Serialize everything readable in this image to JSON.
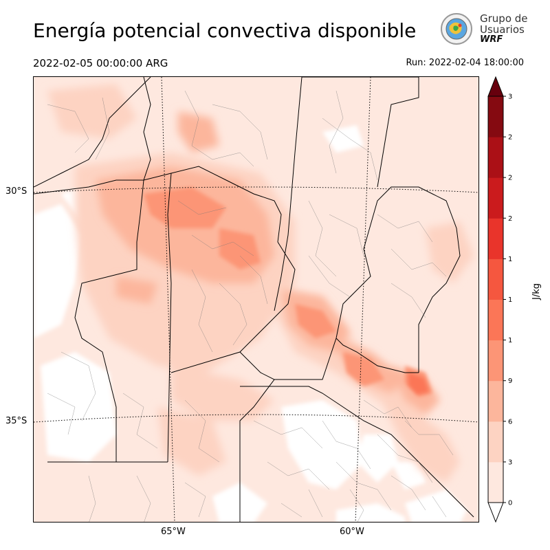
{
  "header": {
    "title": "Energía potencial convectiva disponible",
    "valid_time": "2022-02-05 00:00:00 ARG",
    "run_time": "Run: 2022-02-04 18:00:00"
  },
  "logo": {
    "line1": "Grupo de",
    "line2": "Usuarios",
    "line3": "WRF"
  },
  "map": {
    "latitude_labels": [
      "30°S",
      "35°S"
    ],
    "longitude_labels": [
      "65°W",
      "60°W"
    ]
  },
  "colorbar": {
    "unit": "J/kg",
    "ticks": [
      "0",
      "300",
      "600",
      "900",
      "1200",
      "1500",
      "1800",
      "2100",
      "2400",
      "2700",
      "3000"
    ],
    "colors": [
      "#fee8df",
      "#fdd3c2",
      "#fcb69c",
      "#fc9576",
      "#fb7657",
      "#f5573f",
      "#e9342b",
      "#cb1b1d",
      "#ab1016",
      "#850a11",
      "#67000d"
    ]
  }
}
